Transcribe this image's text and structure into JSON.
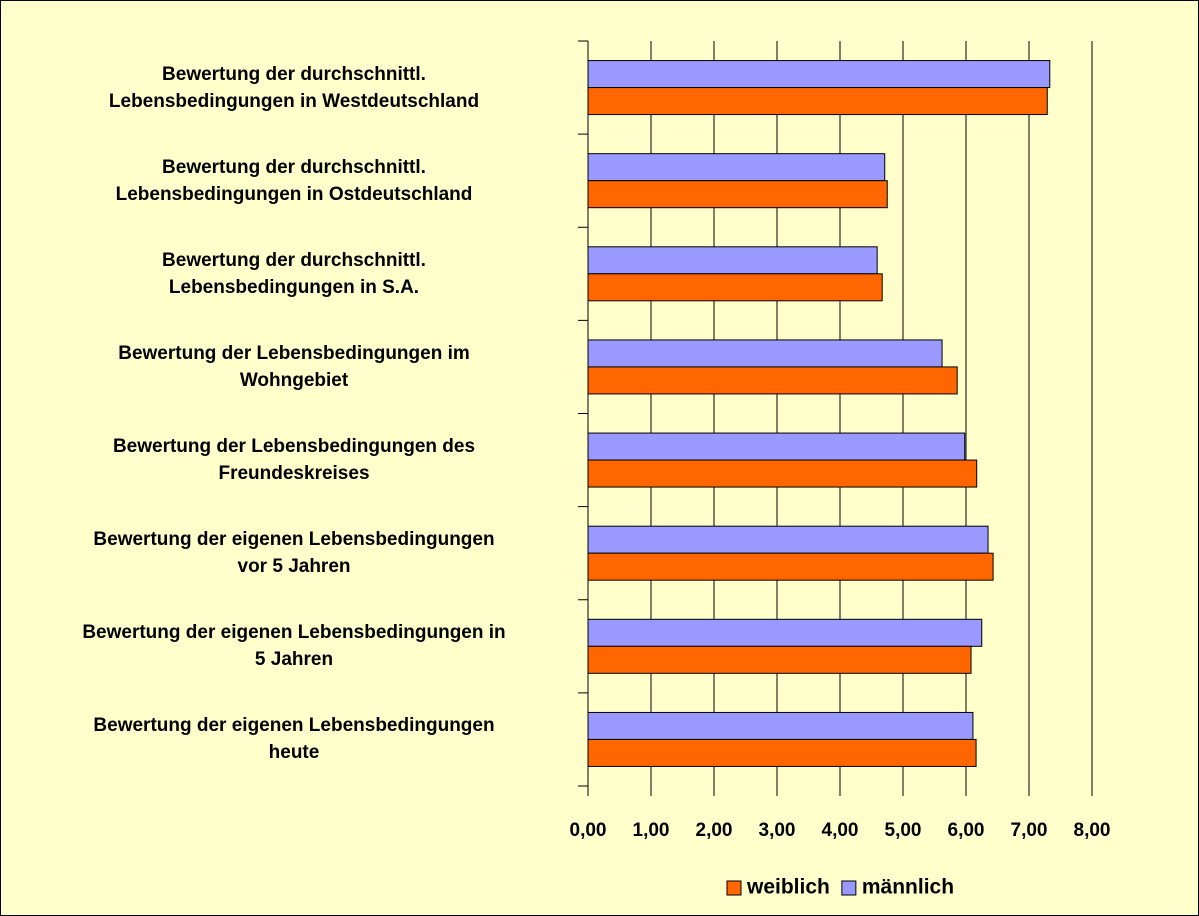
{
  "chart_data": {
    "type": "hbar",
    "categories": [
      "Bewertung der durchschnittl.\nLebensbedingungen in Westdeutschland",
      "Bewertung der durchschnittl.\nLebensbedingungen in Ostdeutschland",
      "Bewertung der durchschnittl.\nLebensbedingungen in S.A.",
      "Bewertung der Lebensbedingungen im\nWohngebiet",
      "Bewertung der Lebensbedingungen des\nFreundeskreises",
      "Bewertung der eigenen Lebensbedingungen\nvor 5 Jahren",
      "Bewertung der eigenen Lebensbedingungen in\n5 Jahren",
      "Bewertung der eigenen Lebensbedingungen\nheute"
    ],
    "series": [
      {
        "name": "weiblich",
        "color": "#FF6600",
        "values": [
          7.29,
          4.75,
          4.67,
          5.86,
          6.17,
          6.43,
          6.08,
          6.16
        ]
      },
      {
        "name": "männlich",
        "color": "#9999FF",
        "values": [
          7.33,
          4.71,
          4.59,
          5.62,
          5.98,
          6.35,
          6.25,
          6.11
        ]
      }
    ],
    "xlim": [
      0,
      8
    ],
    "xticks": [
      {
        "value": 0,
        "label": "0,00"
      },
      {
        "value": 1,
        "label": "1,00"
      },
      {
        "value": 2,
        "label": "2,00"
      },
      {
        "value": 3,
        "label": "3,00"
      },
      {
        "value": 4,
        "label": "4,00"
      },
      {
        "value": 5,
        "label": "5,00"
      },
      {
        "value": 6,
        "label": "6,00"
      },
      {
        "value": 7,
        "label": "7,00"
      },
      {
        "value": 8,
        "label": "8,00"
      }
    ],
    "grid": true,
    "legend": "bottom"
  }
}
